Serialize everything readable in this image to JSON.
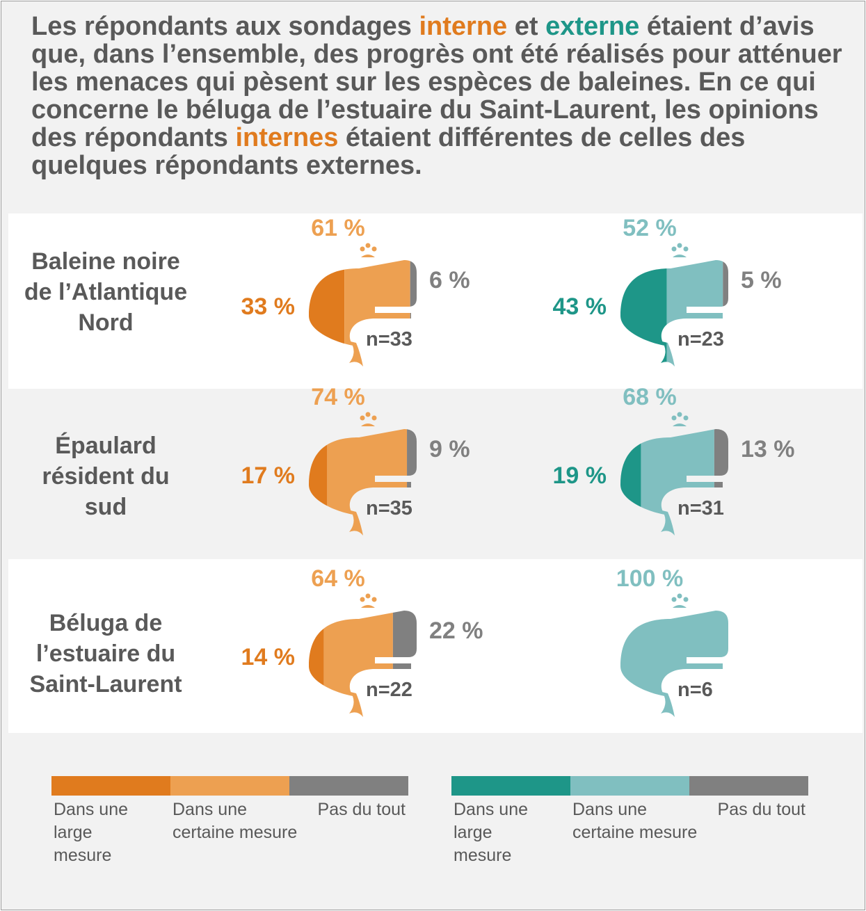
{
  "headline": {
    "parts": [
      {
        "text": "Les répondants aux sondages ",
        "color": "#595959"
      },
      {
        "text": "interne",
        "color": "#e07b1e"
      },
      {
        "text": " et ",
        "color": "#595959"
      },
      {
        "text": "externe",
        "color": "#1e9688"
      },
      {
        "text": " étaient d’avis que, dans l’ensemble, des progrès ont été réalisés pour atténuer les menaces qui pèsent sur les espèces de baleines. En ce qui concerne le béluga de l’estuaire du Saint-Laurent, les opinions des répondants ",
        "color": "#595959"
      },
      {
        "text": "internes",
        "color": "#e07b1e"
      },
      {
        "text": " étaient différentes de celles des quelques répondants externes.",
        "color": "#595959"
      }
    ]
  },
  "colors": {
    "internal_large": "#e07b1e",
    "internal_some": "#eda051",
    "external_large": "#1e9688",
    "external_some": "#80bfc0",
    "none": "#808080",
    "text_gray": "#595959",
    "background": "#f2f2f2",
    "band_white": "#ffffff"
  },
  "rows": [
    {
      "label": "Baleine noire de l’Atlantique Nord"
    },
    {
      "label": "Épaulard résident du sud"
    },
    {
      "label": "Béluga de l’estuaire du Saint-Laurent"
    }
  ],
  "chart_data": {
    "type": "pictorial-stacked-bar",
    "categories": [
      "Baleine noire de l’Atlantique Nord",
      "Épaulard résident du sud",
      "Béluga de l’estuaire du Saint-Laurent"
    ],
    "groups": [
      "interne",
      "externe"
    ],
    "segments": [
      "Dans une large mesure",
      "Dans une certaine mesure",
      "Pas du tout"
    ],
    "unit": "%",
    "cells": [
      {
        "category": "Baleine noire de l’Atlantique Nord",
        "group": "interne",
        "n": 33,
        "values": [
          33,
          61,
          6
        ],
        "n_label": "n=33",
        "value_labels": [
          "33 %",
          "61 %",
          "6 %"
        ]
      },
      {
        "category": "Baleine noire de l’Atlantique Nord",
        "group": "externe",
        "n": 23,
        "values": [
          43,
          52,
          5
        ],
        "n_label": "n=23",
        "value_labels": [
          "43 %",
          "52 %",
          "5 %"
        ]
      },
      {
        "category": "Épaulard résident du sud",
        "group": "interne",
        "n": 35,
        "values": [
          17,
          74,
          9
        ],
        "n_label": "n=35",
        "value_labels": [
          "17 %",
          "74 %",
          "9 %"
        ]
      },
      {
        "category": "Épaulard résident du sud",
        "group": "externe",
        "n": 31,
        "values": [
          19,
          68,
          13
        ],
        "n_label": "n=31",
        "value_labels": [
          "19 %",
          "68 %",
          "13 %"
        ]
      },
      {
        "category": "Béluga de l’estuaire du Saint-Laurent",
        "group": "interne",
        "n": 22,
        "values": [
          14,
          64,
          22
        ],
        "n_label": "n=22",
        "value_labels": [
          "14 %",
          "64 %",
          "22 %"
        ]
      },
      {
        "category": "Béluga de l’estuaire du Saint-Laurent",
        "group": "externe",
        "n": 6,
        "values": [
          0,
          100,
          0
        ],
        "n_label": "n=6",
        "value_labels": [
          "",
          "100 %",
          ""
        ]
      }
    ]
  },
  "legends": [
    {
      "group": "interne",
      "items": [
        {
          "label": "Dans une large mesure",
          "display": "Dans une\nlarge\nmesure",
          "color": "#e07b1e"
        },
        {
          "label": "Dans une certaine mesure",
          "display": "Dans une\ncertaine mesure",
          "color": "#eda051"
        },
        {
          "label": "Pas du tout",
          "display": "Pas du tout",
          "color": "#808080"
        }
      ]
    },
    {
      "group": "externe",
      "items": [
        {
          "label": "Dans une large mesure",
          "display": "Dans une\nlarge\nmesure",
          "color": "#1e9688"
        },
        {
          "label": "Dans une certaine mesure",
          "display": "Dans une\ncertaine mesure",
          "color": "#80bfc0"
        },
        {
          "label": "Pas du tout",
          "display": "Pas du tout",
          "color": "#808080"
        }
      ]
    }
  ]
}
